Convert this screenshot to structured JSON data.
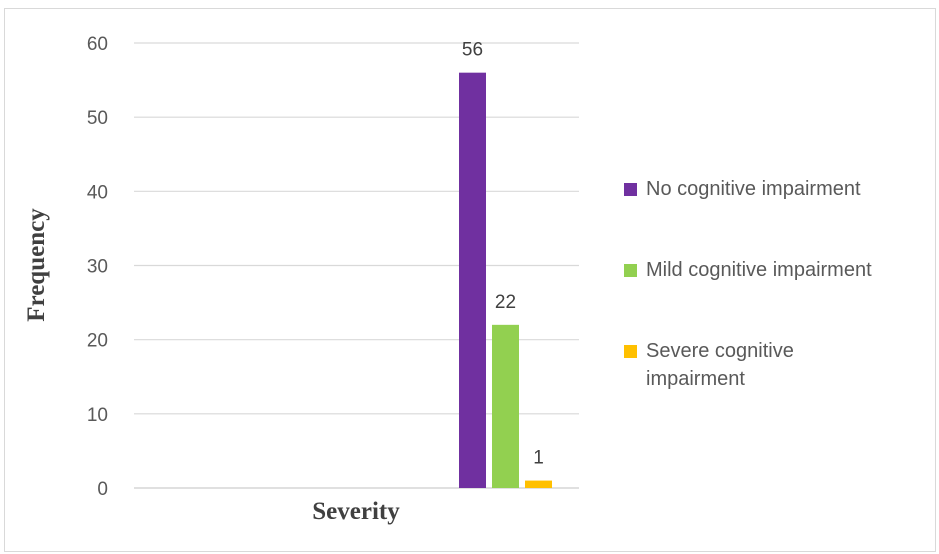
{
  "chart_data": {
    "type": "bar",
    "title": "",
    "xlabel": "Severity",
    "ylabel": "Frequency",
    "ylim": [
      0,
      60
    ],
    "yticks": [
      0,
      10,
      20,
      30,
      40,
      50,
      60
    ],
    "grid": true,
    "legend_position": "right",
    "categories": [
      ""
    ],
    "series": [
      {
        "name": "No cognitive impairment",
        "values": [
          56
        ],
        "color": "#7030a0",
        "data_label": "56"
      },
      {
        "name": "Mild cognitive impairment",
        "values": [
          22
        ],
        "color": "#92d050",
        "data_label": "22"
      },
      {
        "name": "Severe cognitive impairment",
        "values": [
          1
        ],
        "color": "#ffc000",
        "data_label": "1"
      }
    ]
  }
}
